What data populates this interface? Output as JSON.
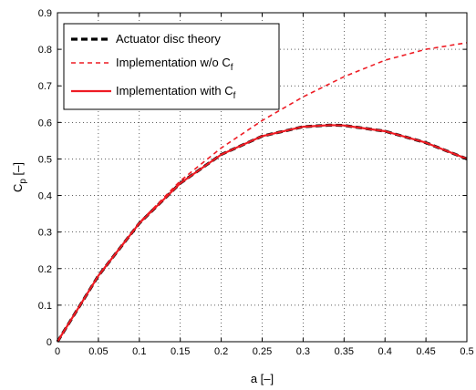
{
  "chart_data": {
    "type": "line",
    "xlabel": "a [–]",
    "ylabel_main": "C",
    "ylabel_sub": "p",
    "ylabel_unit": " [–]",
    "xlim": [
      0,
      0.5
    ],
    "ylim": [
      0,
      0.9
    ],
    "x_ticks": [
      "0",
      "0.05",
      "0.1",
      "0.15",
      "0.2",
      "0.25",
      "0.3",
      "0.35",
      "0.4",
      "0.45",
      "0.5"
    ],
    "y_ticks": [
      "0",
      "0.1",
      "0.2",
      "0.3",
      "0.4",
      "0.5",
      "0.6",
      "0.7",
      "0.8",
      "0.9"
    ],
    "grid": true,
    "legend_position": "top-left",
    "series": [
      {
        "name": "Actuator disc theory",
        "name_main": "Actuator disc theory",
        "name_sub": "",
        "color": "#000000",
        "style": "dashed-thick",
        "x": [
          0,
          0.05,
          0.1,
          0.15,
          0.2,
          0.25,
          0.3,
          0.333,
          0.35,
          0.4,
          0.45,
          0.5
        ],
        "y": [
          0,
          0.1805,
          0.324,
          0.4335,
          0.512,
          0.5625,
          0.588,
          0.5926,
          0.5915,
          0.576,
          0.5445,
          0.5
        ]
      },
      {
        "name": "Implementation w/o Cf",
        "name_main": "Implementation w/o C",
        "name_sub": "f",
        "color": "#ee1c24",
        "style": "dashed",
        "x": [
          0,
          0.05,
          0.1,
          0.15,
          0.2,
          0.25,
          0.3,
          0.35,
          0.4,
          0.45,
          0.5
        ],
        "y": [
          0,
          0.181,
          0.326,
          0.44,
          0.53,
          0.605,
          0.67,
          0.725,
          0.77,
          0.8,
          0.818
        ]
      },
      {
        "name": "Implementation with Cf",
        "name_main": "Implementation with C",
        "name_sub": "f",
        "color": "#ee1c24",
        "style": "solid",
        "x": [
          0,
          0.05,
          0.1,
          0.15,
          0.2,
          0.25,
          0.3,
          0.333,
          0.35,
          0.4,
          0.45,
          0.5
        ],
        "y": [
          0,
          0.1805,
          0.324,
          0.4335,
          0.512,
          0.5625,
          0.588,
          0.5926,
          0.5915,
          0.576,
          0.5445,
          0.5
        ]
      }
    ]
  }
}
